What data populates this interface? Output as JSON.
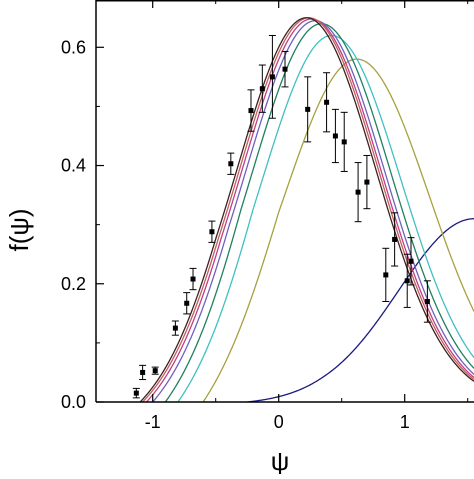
{
  "chart_data": {
    "type": "line",
    "xlabel": "ψ",
    "ylabel": "f(ψ)",
    "xlim": [
      -1.45,
      1.55
    ],
    "ylim": [
      0.0,
      0.68
    ],
    "x_ticks": [
      -1,
      0,
      1
    ],
    "x_tick_labels": [
      "-1",
      "0",
      "1"
    ],
    "y_ticks": [
      0.0,
      0.2,
      0.4,
      0.6
    ],
    "y_tick_labels": [
      "0.0",
      "0.2",
      "0.4",
      "0.6"
    ],
    "grid": false,
    "series": [
      {
        "color": "#1a1a80",
        "mu": 1.55,
        "sigma": 0.6,
        "amp": 0.31,
        "cut": -0.25
      },
      {
        "color": "#a8a040",
        "mu": 0.62,
        "sigma": 0.57,
        "amp": 0.58,
        "cut": -0.6
      },
      {
        "color": "#40c0c0",
        "mu": 0.42,
        "sigma": 0.55,
        "amp": 0.62,
        "cut": -0.8
      },
      {
        "color": "#208060",
        "mu": 0.34,
        "sigma": 0.55,
        "amp": 0.64,
        "cut": -0.9
      },
      {
        "color": "#7060c0",
        "mu": 0.29,
        "sigma": 0.55,
        "amp": 0.645,
        "cut": -1.0
      },
      {
        "color": "#c04080",
        "mu": 0.26,
        "sigma": 0.55,
        "amp": 0.648,
        "cut": -1.05
      },
      {
        "color": "#c06060",
        "mu": 0.24,
        "sigma": 0.55,
        "amp": 0.65,
        "cut": -1.08
      },
      {
        "color": "#402020",
        "mu": 0.22,
        "sigma": 0.55,
        "amp": 0.65,
        "cut": -1.1
      }
    ],
    "points": [
      {
        "x": -1.13,
        "y": 0.015,
        "err": 0.008
      },
      {
        "x": -1.08,
        "y": 0.05,
        "err": 0.012
      },
      {
        "x": -0.98,
        "y": 0.053,
        "err": 0.006
      },
      {
        "x": -0.82,
        "y": 0.125,
        "err": 0.012
      },
      {
        "x": -0.73,
        "y": 0.167,
        "err": 0.018
      },
      {
        "x": -0.68,
        "y": 0.208,
        "err": 0.018
      },
      {
        "x": -0.53,
        "y": 0.288,
        "err": 0.018
      },
      {
        "x": -0.38,
        "y": 0.403,
        "err": 0.018
      },
      {
        "x": -0.22,
        "y": 0.493,
        "err": 0.035
      },
      {
        "x": -0.13,
        "y": 0.53,
        "err": 0.04
      },
      {
        "x": -0.05,
        "y": 0.55,
        "err": 0.07
      },
      {
        "x": 0.05,
        "y": 0.563,
        "err": 0.03
      },
      {
        "x": 0.23,
        "y": 0.495,
        "err": 0.055
      },
      {
        "x": 0.38,
        "y": 0.507,
        "err": 0.05
      },
      {
        "x": 0.45,
        "y": 0.45,
        "err": 0.045
      },
      {
        "x": 0.52,
        "y": 0.44,
        "err": 0.05
      },
      {
        "x": 0.63,
        "y": 0.355,
        "err": 0.05
      },
      {
        "x": 0.7,
        "y": 0.372,
        "err": 0.045
      },
      {
        "x": 0.85,
        "y": 0.215,
        "err": 0.045
      },
      {
        "x": 0.92,
        "y": 0.275,
        "err": 0.045
      },
      {
        "x": 1.02,
        "y": 0.205,
        "err": 0.045
      },
      {
        "x": 1.05,
        "y": 0.238,
        "err": 0.04
      },
      {
        "x": 1.18,
        "y": 0.17,
        "err": 0.035
      }
    ]
  }
}
